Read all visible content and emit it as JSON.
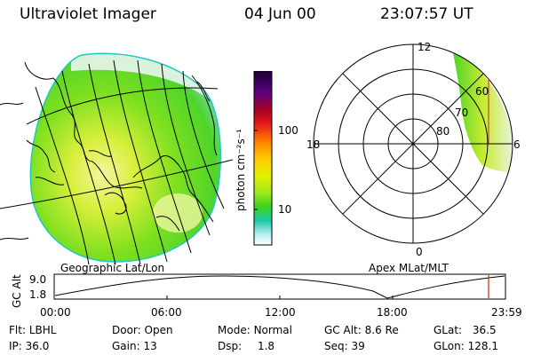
{
  "header": {
    "title": "Ultraviolet Imager",
    "date": "04 Jun 00",
    "time": "23:07:57 UT"
  },
  "left_panel": {
    "label": "Geographic Lat/Lon",
    "colors": {
      "low": "#f4f4f4",
      "cyan": "#22c8c8",
      "green": "#6ce01c",
      "yellow": "#e8f000"
    }
  },
  "colorbar": {
    "unit_label": "photon cm⁻²s⁻¹",
    "ticks": [
      "100",
      "10"
    ],
    "colors_top_to_bottom": [
      "#1a0030",
      "#5a0080",
      "#a00028",
      "#e01818",
      "#ff7a00",
      "#ffc800",
      "#e6f000",
      "#9ee81a",
      "#3cd41c",
      "#1cc8a8",
      "#b8eef0",
      "#ffffff"
    ]
  },
  "right_panel": {
    "label": "Apex MLat/MLT",
    "mlt_labels": {
      "top": "12",
      "left": "18",
      "right": "6",
      "bottom": "0"
    },
    "lat_labels": [
      "60",
      "70",
      "80"
    ]
  },
  "timeline": {
    "ylabel": "GC Alt",
    "yticks": [
      "9.0",
      "1.8"
    ],
    "xticks": [
      "00:00",
      "06:00",
      "12:00",
      "18:00",
      "23:59"
    ],
    "marker_color": "#d02020"
  },
  "info": {
    "flt": {
      "label": "Flt:",
      "value": "LBHL"
    },
    "ip": {
      "label": "IP:",
      "value": "36.0"
    },
    "door": {
      "label": "Door:",
      "value": "Open"
    },
    "gain": {
      "label": "Gain:",
      "value": "13"
    },
    "mode": {
      "label": "Mode:",
      "value": "Normal"
    },
    "dsp": {
      "label": "Dsp:",
      "value": "1.8"
    },
    "gcalt": {
      "label": "GC Alt:",
      "value": "8.6 Re"
    },
    "seq": {
      "label": "Seq:",
      "value": "39"
    },
    "glat": {
      "label": "GLat:",
      "value": "36.5"
    },
    "glon": {
      "label": "GLon:",
      "value": "128.1"
    }
  }
}
